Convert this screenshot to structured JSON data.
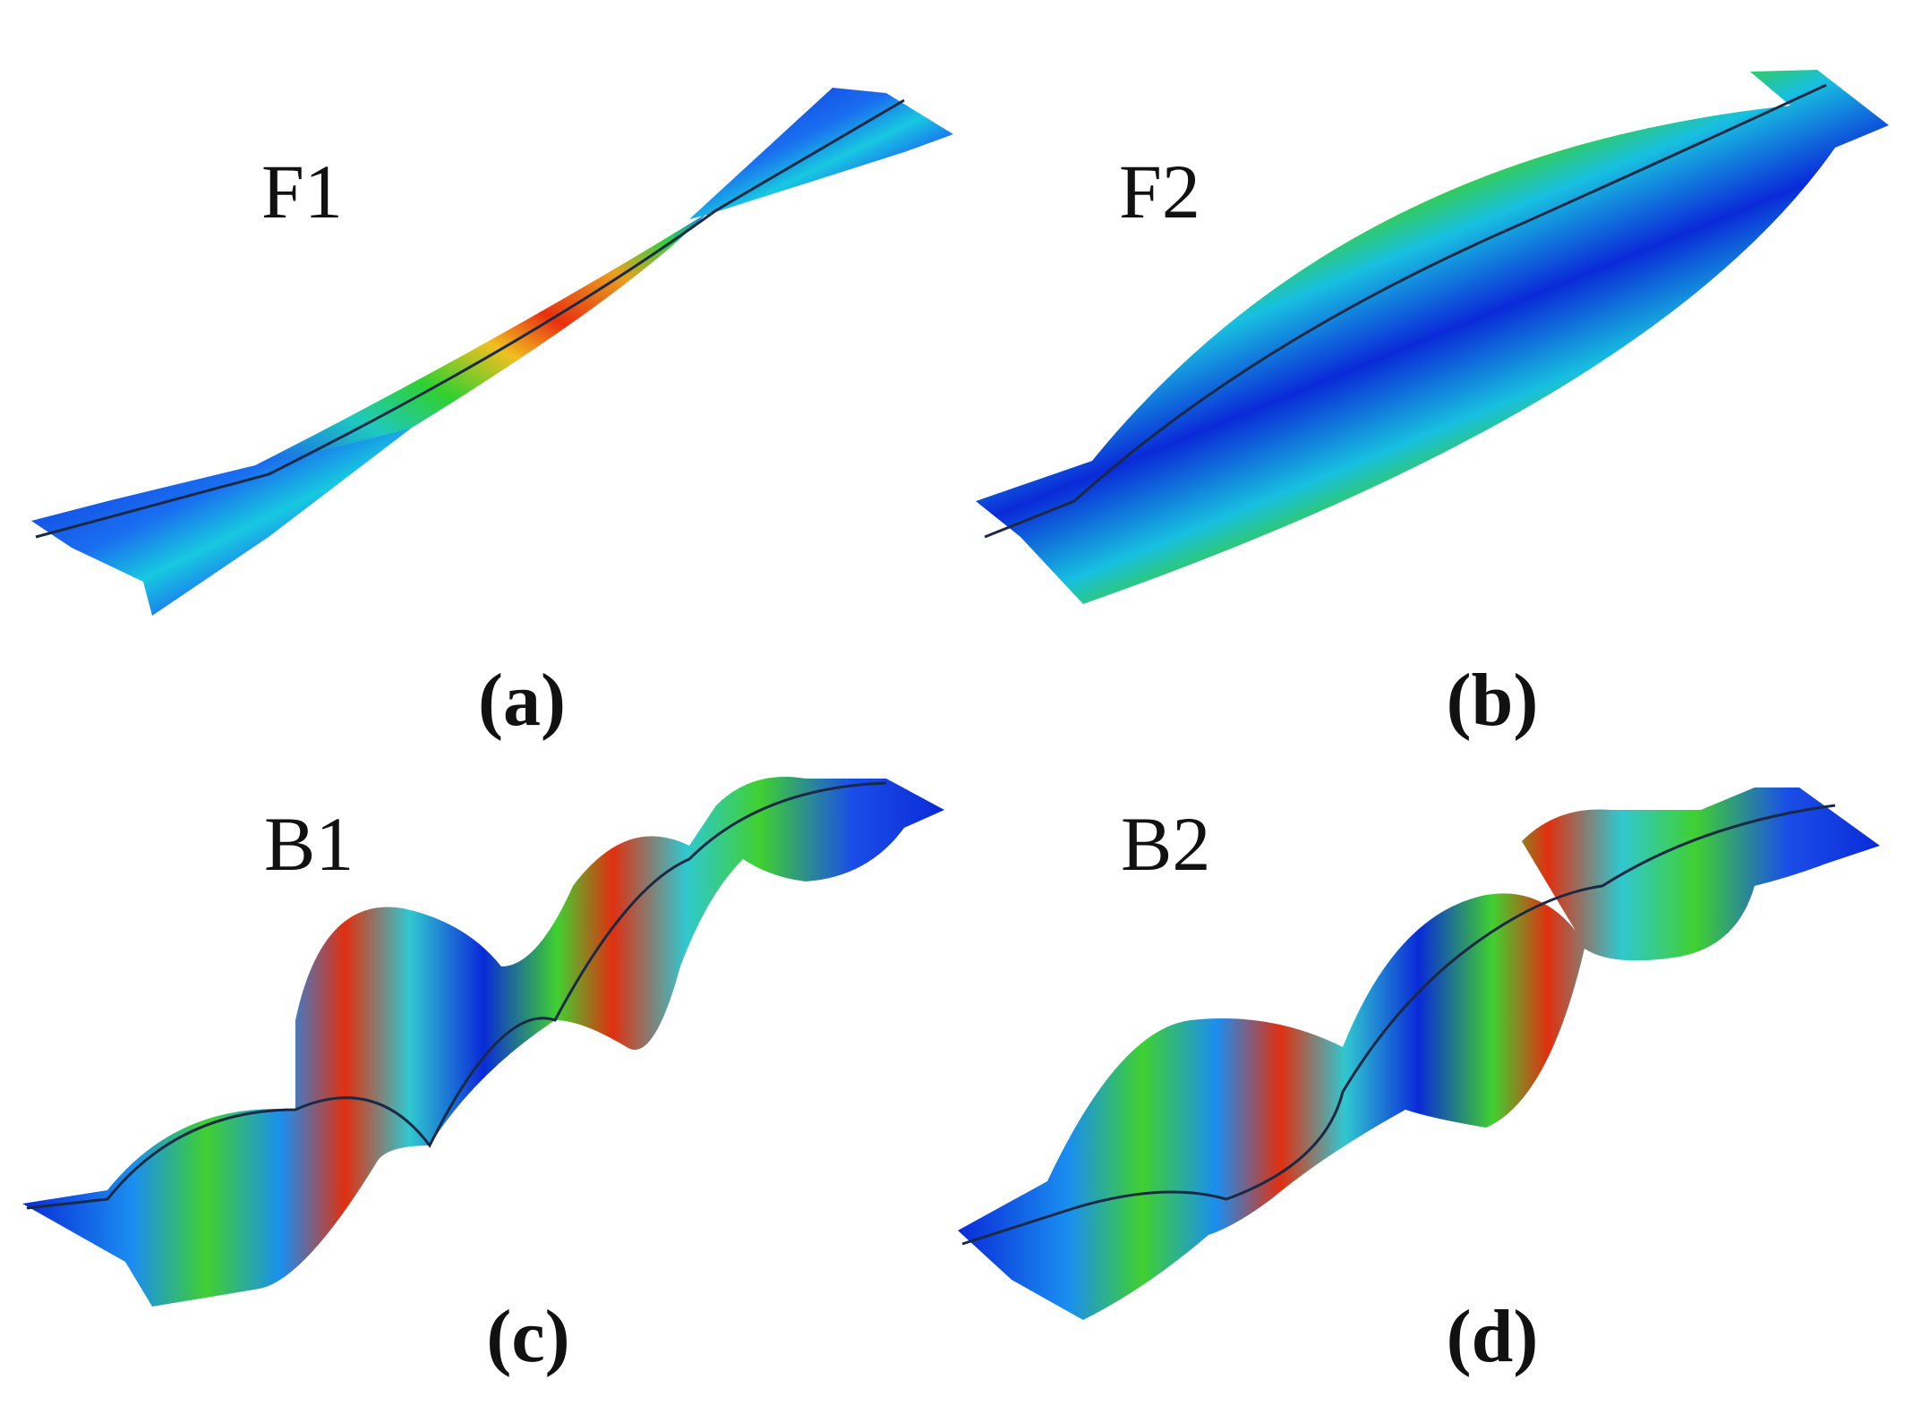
{
  "panels": [
    {
      "label": "F1",
      "caption": "(a)"
    },
    {
      "label": "F2",
      "caption": "(b)"
    },
    {
      "label": "B1",
      "caption": "(c)"
    },
    {
      "label": "B2",
      "caption": "(d)"
    }
  ]
}
